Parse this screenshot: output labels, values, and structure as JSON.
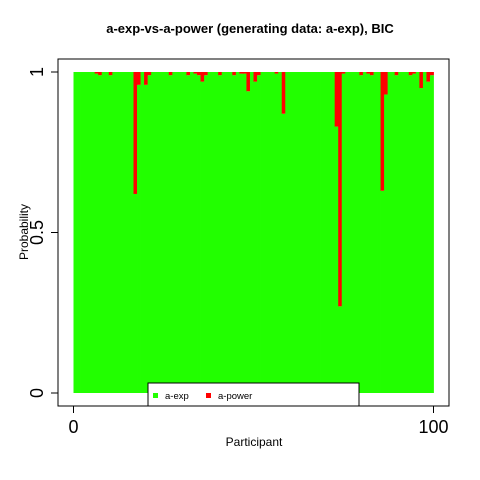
{
  "chart_data": {
    "type": "bar",
    "stacked": true,
    "title": "a-exp-vs-a-power (generating data: a-exp), BIC",
    "xlabel": "Participant",
    "ylabel": "Probability",
    "xlim": [
      0,
      100
    ],
    "ylim": [
      0,
      1
    ],
    "x_ticks": [
      {
        "value": 0,
        "label": "0"
      },
      {
        "value": 100,
        "label": "100"
      }
    ],
    "y_ticks": [
      {
        "value": 0,
        "label": "0"
      },
      {
        "value": 0.5,
        "label": "0.5"
      },
      {
        "value": 1,
        "label": "1"
      }
    ],
    "grid": false,
    "legend_position": "bottom-center",
    "series": [
      {
        "name": "a-exp",
        "color": "#22ff00",
        "values": [
          1,
          1,
          1,
          1,
          1,
          1,
          0.995,
          0.99,
          1,
          1,
          0.99,
          1,
          1,
          1,
          1,
          1,
          1,
          0.62,
          0.96,
          1,
          0.96,
          0.99,
          1,
          1,
          1,
          1,
          1,
          0.99,
          1,
          1,
          1,
          1,
          0.99,
          1,
          0.995,
          0.99,
          0.97,
          0.99,
          1,
          1,
          1,
          0.99,
          1,
          1,
          1,
          0.99,
          1,
          0.995,
          0.995,
          0.94,
          1,
          0.97,
          0.99,
          1,
          1,
          1,
          1,
          0.995,
          1,
          0.87,
          1,
          1,
          1,
          1,
          1,
          1,
          1,
          1,
          1,
          1,
          1,
          1,
          1,
          1,
          0.83,
          0.27,
          0.995,
          1,
          1,
          1,
          1,
          0.99,
          1,
          0.995,
          0.99,
          1,
          1,
          0.63,
          0.93,
          1,
          1,
          0.99,
          1,
          1,
          1,
          0.99,
          0.995,
          1,
          0.95,
          1,
          0.97,
          0.99
        ]
      },
      {
        "name": "a-power",
        "color": "#ff0000",
        "values": [
          0,
          0,
          0,
          0,
          0,
          0,
          0.005,
          0.01,
          0,
          0,
          0.01,
          0,
          0,
          0,
          0,
          0,
          0,
          0.38,
          0.04,
          0,
          0.04,
          0.01,
          0,
          0,
          0,
          0,
          0,
          0.01,
          0,
          0,
          0,
          0,
          0.01,
          0,
          0.005,
          0.01,
          0.03,
          0.01,
          0,
          0,
          0,
          0.01,
          0,
          0,
          0,
          0.01,
          0,
          0.005,
          0.005,
          0.06,
          0,
          0.03,
          0.01,
          0,
          0,
          0,
          0,
          0.005,
          0,
          0.13,
          0,
          0,
          0,
          0,
          0,
          0,
          0,
          0,
          0,
          0,
          0,
          0,
          0,
          0,
          0.17,
          0.73,
          0.005,
          0,
          0,
          0,
          0,
          0.01,
          0,
          0.005,
          0.01,
          0,
          0,
          0.37,
          0.07,
          0,
          0,
          0.01,
          0,
          0,
          0,
          0.01,
          0.005,
          0,
          0.05,
          0,
          0.03,
          0.01
        ]
      }
    ]
  }
}
